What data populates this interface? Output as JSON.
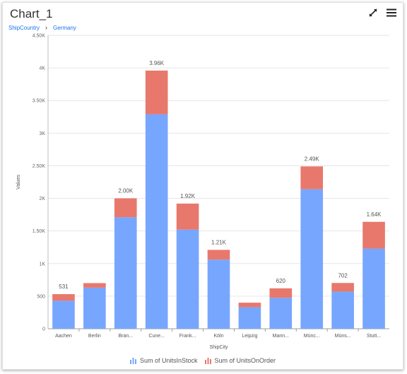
{
  "widget": {
    "title": "Chart_1",
    "breadcrumbs": [
      "ShipCountry",
      "Germany"
    ],
    "breadcrumb_separator": "›",
    "icons": [
      "expand-icon",
      "menu-icon"
    ]
  },
  "colors": {
    "in_stock": "#77a6ff",
    "on_order": "#e8786c",
    "link": "#1a73e8"
  },
  "chart_data": {
    "type": "bar",
    "stacked": true,
    "categories": [
      "Aachen",
      "Berlin",
      "Bran...",
      "Cune...",
      "Frank...",
      "Köln",
      "Leipzig",
      "Mann...",
      "Münc...",
      "Müns...",
      "Stutt..."
    ],
    "series": [
      {
        "name": "Sum of UnitsInStock",
        "values": [
          430,
          630,
          1710,
          3290,
          1520,
          1060,
          330,
          475,
          2140,
          570,
          1230
        ]
      },
      {
        "name": "Sum of UnitsOnOrder",
        "values": [
          101,
          70,
          290,
          670,
          400,
          150,
          70,
          145,
          350,
          132,
          410
        ]
      }
    ],
    "total_labels": [
      "531",
      "",
      "2.00K",
      "3.96K",
      "1.92K",
      "1.21K",
      "",
      "620",
      "2.49K",
      "702",
      "1.64K"
    ],
    "xlabel": "ShipCity",
    "ylabel": "Values",
    "ylim": [
      0,
      4500
    ],
    "yticks": [
      0,
      500,
      1000,
      1500,
      2000,
      2500,
      3000,
      3500,
      4000,
      4500
    ],
    "ytick_labels": [
      "0",
      "500",
      "1K",
      "1.50K",
      "2K",
      "2.50K",
      "3K",
      "3.50K",
      "4K",
      "4.50K"
    ],
    "grid": true,
    "legend_position": "bottom"
  }
}
